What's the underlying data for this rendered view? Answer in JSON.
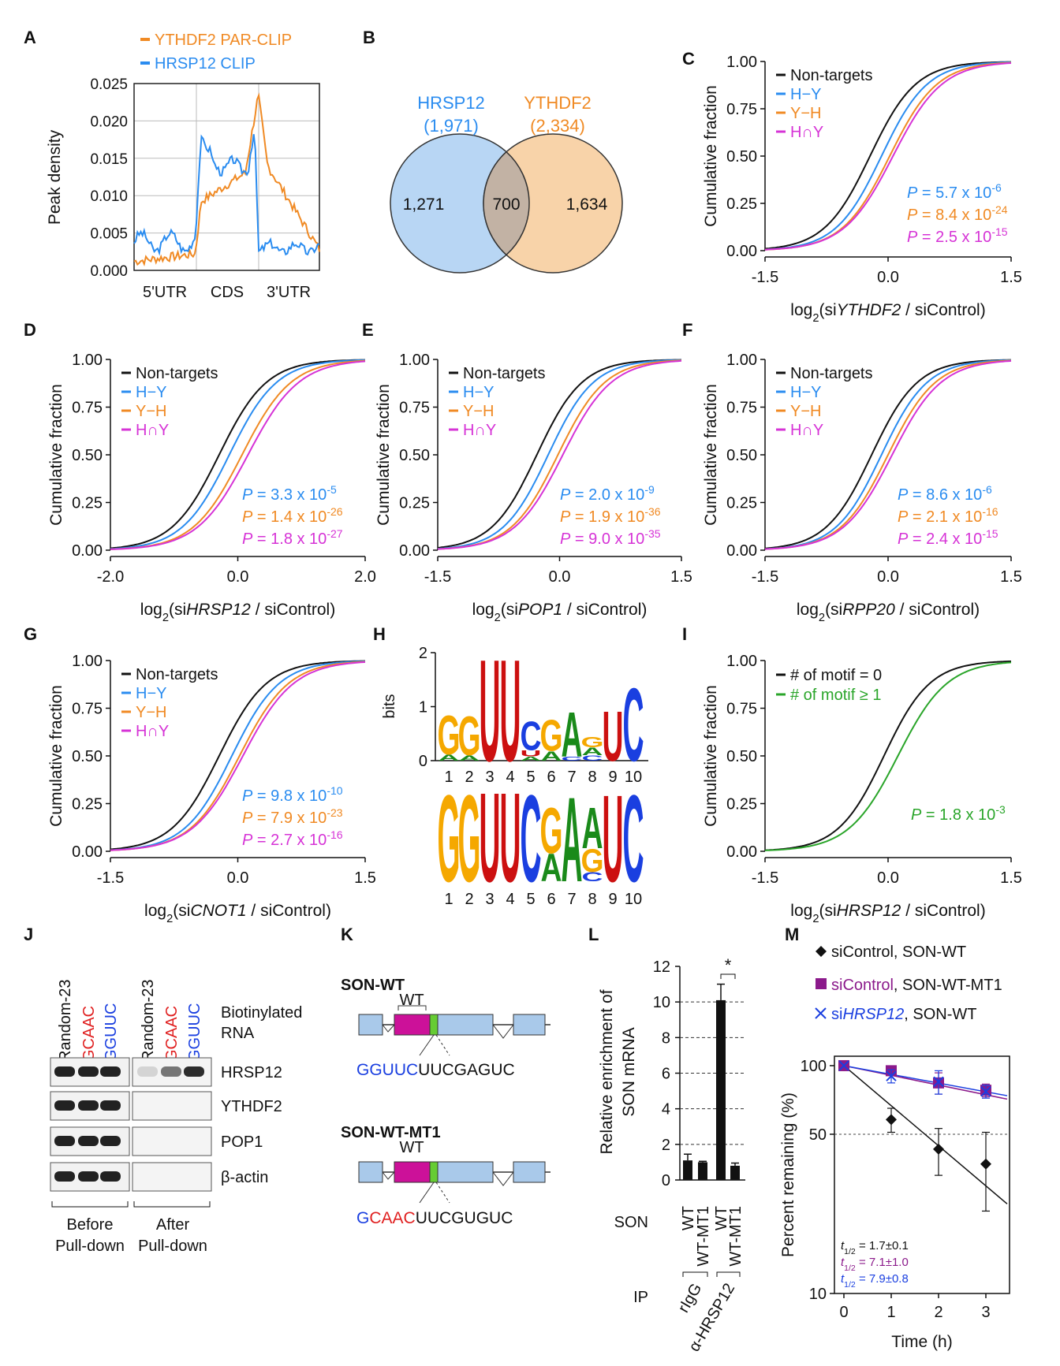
{
  "colors": {
    "hrsp": "#2a8cf0",
    "ythdf": "#f08a24",
    "inter": "#d633d6",
    "black": "#111111",
    "green": "#2aa52a",
    "venn_left": "#b8d6f4",
    "venn_right": "#f8d3a9",
    "venn_mid": "#c2b2a4",
    "red": "#e02020",
    "blue": "#1a3fe0",
    "purple": "#8b1a8b",
    "magenta_box": "#cc1199",
    "lime": "#66cc33",
    "exon": "#a9c9ea"
  },
  "panels": {
    "A": "A",
    "B": "B",
    "C": "C",
    "D": "D",
    "E": "E",
    "F": "F",
    "G": "G",
    "H": "H",
    "I": "I",
    "J": "J",
    "K": "K",
    "L": "L",
    "M": "M"
  },
  "A": {
    "legend": [
      "YTHDF2 PAR-CLIP",
      "HRSP12 CLIP"
    ],
    "ylabel": "Peak density",
    "yticks": [
      "0.025",
      "0.020",
      "0.015",
      "0.010",
      "0.005",
      "0.000"
    ],
    "xlabels": [
      "5'UTR",
      "CDS",
      "3'UTR"
    ]
  },
  "B": {
    "left_name": "HRSP12",
    "left_total": "(1,971)",
    "right_name": "YTHDF2",
    "right_total": "(2,334)",
    "left_only": "1,271",
    "overlap": "700",
    "right_only": "1,634"
  },
  "cdf_common": {
    "ylabel": "Cumulative fraction",
    "yticks": [
      "1.00",
      "0.75",
      "0.50",
      "0.25",
      "0.00"
    ],
    "legend": [
      "Non-targets",
      "H−Y",
      "Y−H",
      "H∩Y"
    ],
    "p_prefix": "P",
    "p_eq": " = ",
    "times": " x 10"
  },
  "C": {
    "xlabel_pre": "log",
    "xlabel_sub": "2",
    "xlabel_open": "(si",
    "gene": "YTHDF2",
    "xlabel_post": " / siControl)",
    "xticks": [
      "-1.5",
      "0.0",
      "1.5"
    ],
    "p": [
      {
        "m": "5.7",
        "e": "-6"
      },
      {
        "m": "8.4",
        "e": "-24"
      },
      {
        "m": "2.5",
        "e": "-15"
      }
    ]
  },
  "D": {
    "xlabel_pre": "log",
    "xlabel_sub": "2",
    "xlabel_open": "(si",
    "gene": "HRSP12",
    "xlabel_post": " / siControl)",
    "xticks": [
      "-2.0",
      "0.0",
      "2.0"
    ],
    "p": [
      {
        "m": "3.3",
        "e": "-5"
      },
      {
        "m": "1.4",
        "e": "-26"
      },
      {
        "m": "1.8",
        "e": "-27"
      }
    ]
  },
  "E": {
    "xlabel_pre": "log",
    "xlabel_sub": "2",
    "xlabel_open": "(si",
    "gene": "POP1",
    "xlabel_post": " / siControl)",
    "xticks": [
      "-1.5",
      "0.0",
      "1.5"
    ],
    "p": [
      {
        "m": "2.0",
        "e": "-9"
      },
      {
        "m": "1.9",
        "e": "-36"
      },
      {
        "m": "9.0",
        "e": "-35"
      }
    ]
  },
  "F": {
    "xlabel_pre": "log",
    "xlabel_sub": "2",
    "xlabel_open": "(si",
    "gene": "RPP20",
    "xlabel_post": " / siControl)",
    "xticks": [
      "-1.5",
      "0.0",
      "1.5"
    ],
    "p": [
      {
        "m": "8.6",
        "e": "-6"
      },
      {
        "m": "2.1",
        "e": "-16"
      },
      {
        "m": "2.4",
        "e": "-15"
      }
    ]
  },
  "G": {
    "xlabel_pre": "log",
    "xlabel_sub": "2",
    "xlabel_open": "(si",
    "gene": "CNOT1",
    "xlabel_post": " / siControl)",
    "xticks": [
      "-1.5",
      "0.0",
      "1.5"
    ],
    "p": [
      {
        "m": "9.8",
        "e": "-10"
      },
      {
        "m": "7.9",
        "e": "-23"
      },
      {
        "m": "2.7",
        "e": "-16"
      }
    ]
  },
  "H": {
    "ylabel": "bits",
    "yticks": [
      "2",
      "1",
      "0"
    ],
    "positions": [
      "1",
      "2",
      "3",
      "4",
      "5",
      "6",
      "7",
      "8",
      "9",
      "10"
    ],
    "logo1": [
      [
        {
          "l": "G",
          "h": 0.75
        },
        {
          "l": "A",
          "h": 0.12
        }
      ],
      [
        {
          "l": "G",
          "h": 0.75
        },
        {
          "l": "A",
          "h": 0.1
        }
      ],
      [
        {
          "l": "U",
          "h": 1.95
        }
      ],
      [
        {
          "l": "U",
          "h": 1.95
        }
      ],
      [
        {
          "l": "C",
          "h": 0.55
        },
        {
          "l": "U",
          "h": 0.12
        },
        {
          "l": "A",
          "h": 0.08
        }
      ],
      [
        {
          "l": "G",
          "h": 0.6
        },
        {
          "l": "A",
          "h": 0.18
        }
      ],
      [
        {
          "l": "A",
          "h": 0.85
        },
        {
          "l": "C",
          "h": 0.08
        }
      ],
      [
        {
          "l": "G",
          "h": 0.2
        },
        {
          "l": "A",
          "h": 0.15
        },
        {
          "l": "C",
          "h": 0.1
        }
      ],
      [
        {
          "l": "U",
          "h": 0.95
        }
      ],
      [
        {
          "l": "C",
          "h": 1.4
        }
      ]
    ],
    "logo2": [
      [
        {
          "l": "G",
          "h": 1.9
        }
      ],
      [
        {
          "l": "G",
          "h": 1.9
        }
      ],
      [
        {
          "l": "U",
          "h": 1.95
        }
      ],
      [
        {
          "l": "U",
          "h": 1.95
        }
      ],
      [
        {
          "l": "C",
          "h": 1.9
        }
      ],
      [
        {
          "l": "G",
          "h": 1.0
        },
        {
          "l": "A",
          "h": 0.6
        }
      ],
      [
        {
          "l": "A",
          "h": 1.85
        }
      ],
      [
        {
          "l": "A",
          "h": 0.9
        },
        {
          "l": "G",
          "h": 0.5
        },
        {
          "l": "C",
          "h": 0.2
        }
      ],
      [
        {
          "l": "U",
          "h": 1.9
        }
      ],
      [
        {
          "l": "C",
          "h": 1.9
        }
      ]
    ]
  },
  "I": {
    "xlabel_pre": "log",
    "xlabel_sub": "2",
    "xlabel_open": "(si",
    "gene": "HRSP12",
    "xlabel_post": " / siControl)",
    "xticks": [
      "-1.5",
      "0.0",
      "1.5"
    ],
    "legend": [
      "# of motif = 0",
      "# of motif ≥ 1"
    ],
    "p": {
      "m": "1.8",
      "e": "-3"
    }
  },
  "J": {
    "lanes": [
      "Random-23",
      "GCAAC",
      "GGUUC",
      "Random-23",
      "GCAAC",
      "GGUUC"
    ],
    "header": [
      "Biotinylated",
      "RNA"
    ],
    "bands": [
      "HRSP12",
      "YTHDF2",
      "POP1",
      "β-actin"
    ],
    "groups": [
      [
        "Before",
        "Pull-down"
      ],
      [
        "After",
        "Pull-down"
      ]
    ]
  },
  "K": {
    "title1": "SON-WT",
    "wt1": "WT",
    "seq1_hl": "GGUUC",
    "seq1_rest": "UUCGAGUC",
    "title2": "SON-WT-MT1",
    "wt2": "WT",
    "seq2_a": "G",
    "seq2_b": "CAAC",
    "seq2_rest": "UUCGUGUC"
  },
  "L": {
    "ylabel": [
      "Relative enrichment of",
      "SON mRNA"
    ],
    "yticks": [
      "12",
      "10",
      "8",
      "6",
      "4",
      "2",
      "0"
    ],
    "son_label": "SON",
    "ip_label": "IP",
    "son": [
      "WT",
      "WT-MT1",
      "WT",
      "WT-MT1"
    ],
    "ip": [
      "rIgG",
      "α-HRSP12"
    ],
    "star": "*"
  },
  "chart_data": {
    "type": "bar",
    "categories": [
      "rIgG WT",
      "rIgG WT-MT1",
      "α-HRSP12 WT",
      "α-HRSP12 WT-MT1"
    ],
    "values": [
      1.1,
      1.0,
      10.1,
      0.8
    ],
    "errors": [
      0.35,
      0.05,
      0.9,
      0.15
    ],
    "ylabel": "Relative enrichment of SON mRNA",
    "ylim": [
      0,
      12
    ]
  },
  "M": {
    "legend": [
      {
        "pre": "siControl, SON-WT",
        "gene": "",
        "post": ""
      },
      {
        "pre": "siControl",
        "gene": "",
        "post": ", SON-WT-MT1"
      },
      {
        "pre": "si",
        "gene": "HRSP12",
        "post": ", SON-WT"
      }
    ],
    "ylabel": "Percent remaining (%)",
    "yticks": [
      "100",
      "50",
      "10"
    ],
    "xticks": [
      "0",
      "1",
      "2",
      "3"
    ],
    "xlabel": "Time (h)",
    "half": [
      {
        "v": " = 1.7±0.1"
      },
      {
        "v": " = 7.1±1.0"
      },
      {
        "v": " = 7.9±0.8"
      }
    ],
    "t_sym": "t",
    "t_sub": "1/2",
    "series": [
      {
        "x": [
          0,
          1,
          2,
          3
        ],
        "y": [
          100,
          58,
          43,
          37
        ],
        "err": [
          0,
          7,
          10,
          14
        ]
      },
      {
        "x": [
          0,
          1,
          2,
          3
        ],
        "y": [
          100,
          95,
          84,
          78
        ],
        "err": [
          0,
          4,
          9,
          5
        ]
      },
      {
        "x": [
          0,
          1,
          2,
          3
        ],
        "y": [
          100,
          90,
          85,
          77
        ],
        "err": [
          0,
          6,
          10,
          5
        ]
      }
    ]
  }
}
